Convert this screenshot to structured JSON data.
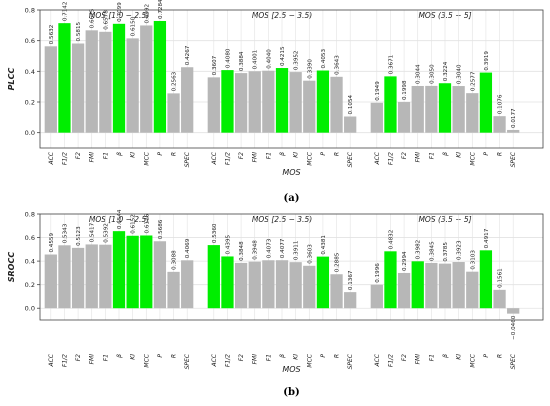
{
  "chart_data": [
    {
      "type": "bar",
      "panel_label": "(a)",
      "ylabel": "PLCC",
      "xlabel": "MOS",
      "ylim": [
        -0.1,
        0.8
      ],
      "yticks": [
        "0.0",
        "0.2",
        "0.4",
        "0.6",
        "0.8"
      ],
      "grid": true,
      "categories": [
        "ACC",
        "F1/2",
        "F2",
        "FMI",
        "F1",
        "β",
        "KI",
        "MCC",
        "P",
        "R",
        "SPEC"
      ],
      "groups": [
        {
          "name": "MOS [1.0 − 2.5)",
          "values": [
            0.5632,
            0.7142,
            0.5815,
            0.6675,
            0.6578,
            0.7099,
            0.615,
            0.6992,
            0.7284,
            0.2563,
            0.4267
          ],
          "labels": [
            "0.5632",
            "0.7142",
            "0.5815",
            "0.6675",
            "0.6578",
            "0.7099",
            "0.6150",
            "0.6992",
            "0.7284",
            "0.2563",
            "0.4267"
          ],
          "highlight": [
            1,
            5,
            8
          ]
        },
        {
          "name": "MOS [2.5 − 3.5)",
          "values": [
            0.3607,
            0.408,
            0.3884,
            0.4001,
            0.404,
            0.4215,
            0.3952,
            0.339,
            0.4053,
            0.3643,
            0.1054
          ],
          "labels": [
            "0.3607",
            "0.4080",
            "0.3884",
            "0.4001",
            "0.4040",
            "0.4215",
            "0.3952",
            "0.3390",
            "0.4053",
            "0.3643",
            "0.1054"
          ],
          "highlight": [
            1,
            5,
            8
          ]
        },
        {
          "name": "MOS (3.5 − 5]",
          "values": [
            0.1949,
            0.3671,
            0.1998,
            0.3044,
            0.305,
            0.3224,
            0.304,
            0.2577,
            0.3919,
            0.1076,
            0.0177
          ],
          "labels": [
            "0.1949",
            "0.3671",
            "0.1998",
            "0.3044",
            "0.3050",
            "0.3224",
            "0.3040",
            "0.2577",
            "0.3919",
            "0.1076",
            "0.0177"
          ],
          "highlight": [
            1,
            5,
            8
          ]
        }
      ]
    },
    {
      "type": "bar",
      "panel_label": "(b)",
      "ylabel": "SROCC",
      "xlabel": "MOS",
      "ylim": [
        -0.1,
        0.8
      ],
      "yticks": [
        "0.0",
        "0.2",
        "0.4",
        "0.6",
        "0.8"
      ],
      "grid": true,
      "categories": [
        "ACC",
        "F1/2",
        "F2",
        "FMI",
        "F1",
        "β",
        "KI",
        "MCC",
        "P",
        "R",
        "SPEC"
      ],
      "groups": [
        {
          "name": "MOS [1.0 − 2.5)",
          "values": [
            0.4559,
            0.5343,
            0.5123,
            0.5417,
            0.5392,
            0.6544,
            0.6152,
            0.6176,
            0.5686,
            0.3088,
            0.4069
          ],
          "labels": [
            "0.4559",
            "0.5343",
            "0.5123",
            "0.5417",
            "0.5392",
            "0.6544",
            "0.6152",
            "0.6176",
            "0.5686",
            "0.3088",
            "0.4069"
          ],
          "highlight": [
            5,
            6,
            7
          ]
        },
        {
          "name": "MOS [2.5 − 3.5)",
          "values": [
            0.536,
            0.4395,
            0.3848,
            0.3948,
            0.4073,
            0.4077,
            0.3911,
            0.3603,
            0.4381,
            0.2885,
            0.1367
          ],
          "labels": [
            "0.5360",
            "0.4395",
            "0.3848",
            "0.3948",
            "0.4073",
            "0.4077",
            "0.3911",
            "0.3603",
            "0.4381",
            "0.2885",
            "0.1367"
          ],
          "highlight": [
            0,
            1,
            8
          ]
        },
        {
          "name": "MOS (3.5 − 5]",
          "values": [
            0.1996,
            0.4832,
            0.2994,
            0.3982,
            0.3845,
            0.3785,
            0.3923,
            0.3103,
            0.4917,
            0.1561,
            -0.046
          ],
          "labels": [
            "0.1996",
            "0.4832",
            "0.2994",
            "0.3982",
            "0.3845",
            "0.3785",
            "0.3923",
            "0.3103",
            "0.4917",
            "0.1561",
            "−0.0460"
          ],
          "highlight": [
            1,
            3,
            8
          ]
        }
      ]
    }
  ],
  "colors": {
    "bar": "#b7b7b7",
    "highlight": "#00ee00",
    "grid": "#e2e2e2",
    "frame": "#444444"
  }
}
